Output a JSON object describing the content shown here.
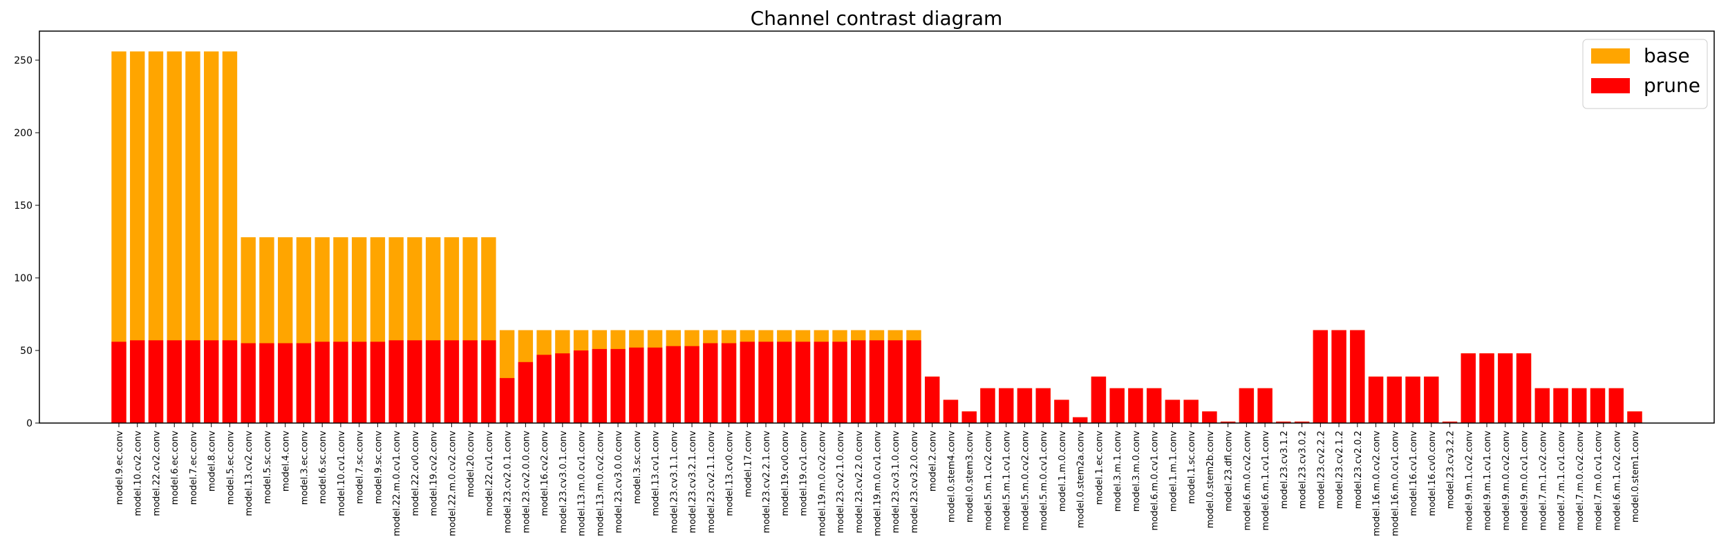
{
  "chart_data": {
    "type": "bar",
    "title": "Channel contrast diagram",
    "xlabel": "",
    "ylabel": "",
    "ylim": [
      0,
      270
    ],
    "yticks": [
      0,
      50,
      100,
      150,
      200,
      250
    ],
    "grid": false,
    "legend_position": "top-right",
    "colors": {
      "base": "#ffa500",
      "prune": "#ff0000"
    },
    "categories": [
      "model.9.ec.conv",
      "model.10.cv2.conv",
      "model.22.cv2.conv",
      "model.6.ec.conv",
      "model.7.ec.conv",
      "model.8.conv",
      "model.5.ec.conv",
      "model.13.cv2.conv",
      "model.5.sc.conv",
      "model.4.conv",
      "model.3.ec.conv",
      "model.6.sc.conv",
      "model.10.cv1.conv",
      "model.7.sc.conv",
      "model.9.sc.conv",
      "model.22.m.0.cv1.conv",
      "model.22.cv0.conv",
      "model.19.cv2.conv",
      "model.22.m.0.cv2.conv",
      "model.20.conv",
      "model.22.cv1.conv",
      "model.23.cv2.0.1.conv",
      "model.23.cv2.0.0.conv",
      "model.16.cv2.conv",
      "model.23.cv3.0.1.conv",
      "model.13.m.0.cv1.conv",
      "model.13.m.0.cv2.conv",
      "model.23.cv3.0.0.conv",
      "model.3.sc.conv",
      "model.13.cv1.conv",
      "model.23.cv3.1.1.conv",
      "model.23.cv3.2.1.conv",
      "model.23.cv2.1.1.conv",
      "model.13.cv0.conv",
      "model.17.conv",
      "model.23.cv2.2.1.conv",
      "model.19.cv0.conv",
      "model.19.cv1.conv",
      "model.19.m.0.cv2.conv",
      "model.23.cv2.1.0.conv",
      "model.23.cv2.2.0.conv",
      "model.19.m.0.cv1.conv",
      "model.23.cv3.1.0.conv",
      "model.23.cv3.2.0.conv",
      "model.2.conv",
      "model.0.stem4.conv",
      "model.0.stem3.conv",
      "model.5.m.1.cv2.conv",
      "model.5.m.1.cv1.conv",
      "model.5.m.0.cv2.conv",
      "model.5.m.0.cv1.conv",
      "model.1.m.0.conv",
      "model.0.stem2a.conv",
      "model.1.ec.conv",
      "model.3.m.1.conv",
      "model.3.m.0.conv",
      "model.6.m.0.cv1.conv",
      "model.1.m.1.conv",
      "model.1.sc.conv",
      "model.0.stem2b.conv",
      "model.23.dfl.conv",
      "model.6.m.0.cv2.conv",
      "model.6.m.1.cv1.conv",
      "model.23.cv3.1.2",
      "model.23.cv3.0.2",
      "model.23.cv2.2.2",
      "model.23.cv2.1.2",
      "model.23.cv2.0.2",
      "model.16.m.0.cv2.conv",
      "model.16.m.0.cv1.conv",
      "model.16.cv1.conv",
      "model.16.cv0.conv",
      "model.23.cv3.2.2",
      "model.9.m.1.cv2.conv",
      "model.9.m.1.cv1.conv",
      "model.9.m.0.cv2.conv",
      "model.9.m.0.cv1.conv",
      "model.7.m.1.cv2.conv",
      "model.7.m.1.cv1.conv",
      "model.7.m.0.cv2.conv",
      "model.7.m.0.cv1.conv",
      "model.6.m.1.cv2.conv",
      "model.0.stem1.conv"
    ],
    "series": [
      {
        "name": "base",
        "values": [
          256,
          256,
          256,
          256,
          256,
          256,
          256,
          128,
          128,
          128,
          128,
          128,
          128,
          128,
          128,
          128,
          128,
          128,
          128,
          128,
          128,
          64,
          64,
          64,
          64,
          64,
          64,
          64,
          64,
          64,
          64,
          64,
          64,
          64,
          64,
          64,
          64,
          64,
          64,
          64,
          64,
          64,
          64,
          64,
          32,
          16,
          8,
          24,
          24,
          24,
          24,
          16,
          4,
          32,
          24,
          24,
          24,
          16,
          16,
          8,
          1,
          24,
          24,
          1,
          1,
          64,
          64,
          64,
          32,
          32,
          32,
          32,
          1,
          48,
          48,
          48,
          48,
          24,
          24,
          24,
          24,
          24,
          8
        ]
      },
      {
        "name": "prune",
        "values": [
          56,
          57,
          57,
          57,
          57,
          57,
          57,
          55,
          55,
          55,
          55,
          56,
          56,
          56,
          56,
          57,
          57,
          57,
          57,
          57,
          57,
          31,
          42,
          47,
          48,
          50,
          51,
          51,
          52,
          52,
          53,
          53,
          55,
          55,
          56,
          56,
          56,
          56,
          56,
          56,
          57,
          57,
          57,
          57,
          32,
          16,
          8,
          24,
          24,
          24,
          24,
          16,
          4,
          32,
          24,
          24,
          24,
          16,
          16,
          8,
          1,
          24,
          24,
          1,
          1,
          64,
          64,
          64,
          32,
          32,
          32,
          32,
          1,
          48,
          48,
          48,
          48,
          24,
          24,
          24,
          24,
          24,
          8
        ]
      }
    ]
  }
}
